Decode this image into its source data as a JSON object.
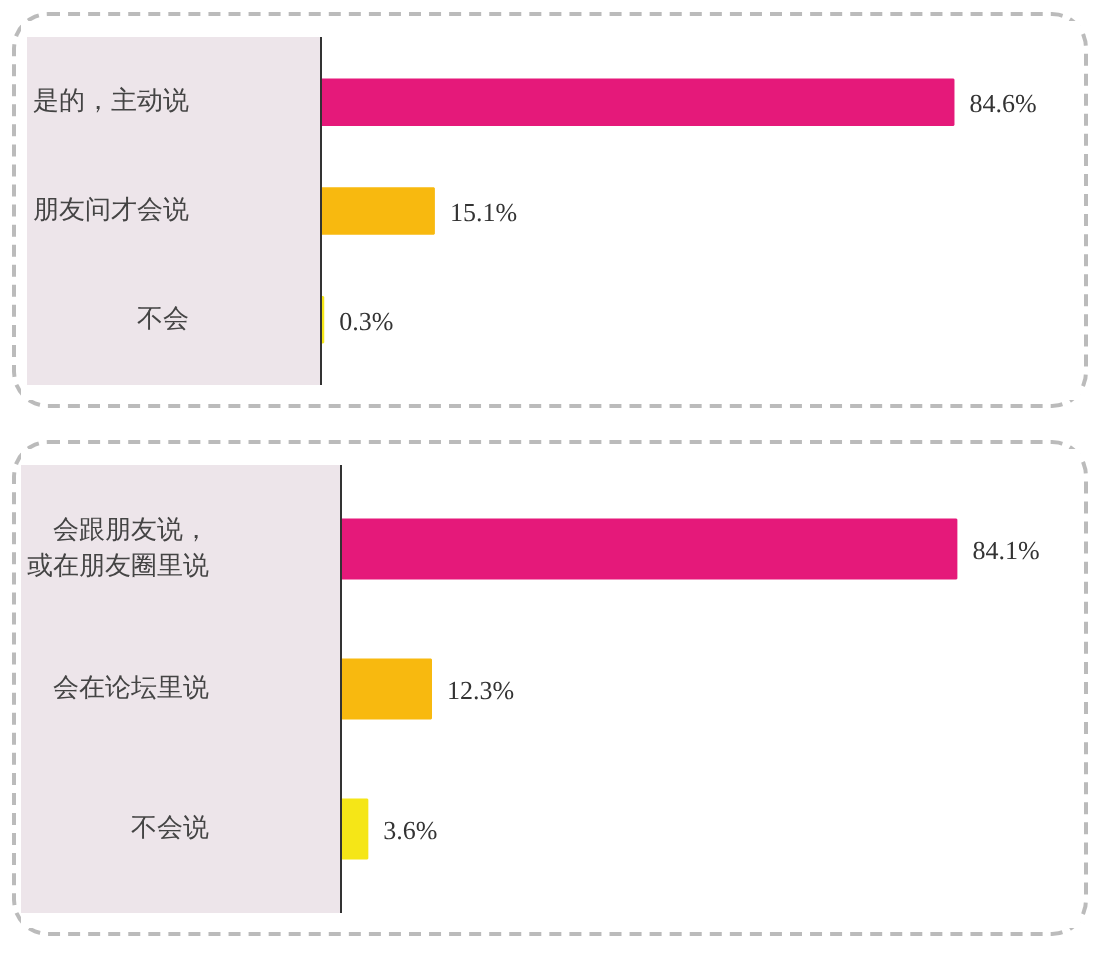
{
  "chart_data": [
    {
      "type": "bar",
      "orientation": "horizontal",
      "categories": [
        "是的，主动说",
        "朋友问才会说",
        "不会"
      ],
      "values": [
        84.6,
        15.1,
        0.3
      ],
      "colors": [
        "#e5197a",
        "#f8b90f",
        "#f5e617"
      ],
      "value_labels": [
        "84.6%",
        "15.1%",
        "0.3%"
      ]
    },
    {
      "type": "bar",
      "orientation": "horizontal",
      "categories": [
        "会跟朋友说，或在朋友圈里说",
        "会在论坛里说",
        "不会说"
      ],
      "values": [
        84.1,
        12.3,
        3.6
      ],
      "colors": [
        "#e5197a",
        "#f8b90f",
        "#f5e617"
      ],
      "value_labels": [
        "84.1%",
        "12.3%",
        "3.6%"
      ]
    }
  ]
}
